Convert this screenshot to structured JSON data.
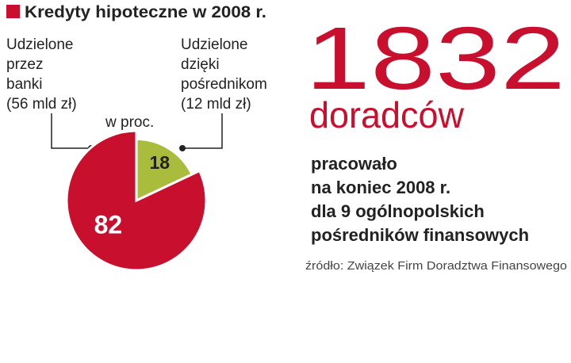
{
  "chart_data": {
    "type": "pie",
    "title": "Kredyty hipoteczne w 2008 r.",
    "unit_label": "w proc.",
    "categories": [
      [
        "Udzielone",
        "przez",
        "banki",
        "(56 mld zł)"
      ],
      [
        "Udzielone",
        "dzięki",
        "pośrednikom",
        "(12 mld zł)"
      ]
    ],
    "values": [
      82,
      18
    ],
    "colors": [
      "#c8102e",
      "#a9bc3c"
    ],
    "label_colors": [
      "#ffffff",
      "#222222"
    ]
  },
  "stat": {
    "number": "1832",
    "unit": "doradców",
    "lines": [
      "pracowało",
      "na koniec 2008 r.",
      "dla 9 ogólnopolskich",
      "pośredników finansowych"
    ]
  },
  "source": "źródło: Związek Firm Doradztwa Finansowego"
}
